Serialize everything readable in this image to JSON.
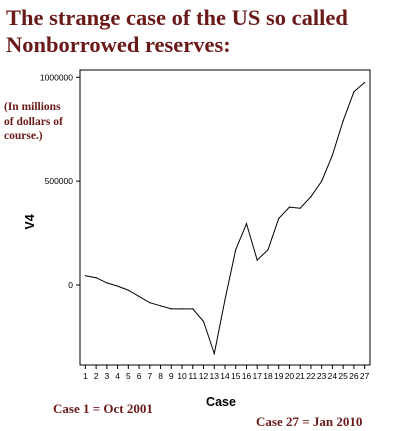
{
  "header": {
    "title_line1": "The strange case of the US so called",
    "title_line2": "Nonborrowed reserves:"
  },
  "units_note": {
    "line1": "(In millions",
    "line2": "of dollars of",
    "line3": "course.)"
  },
  "footnotes": {
    "start": "Case 1 = Oct 2001",
    "end": "Case 27 = Jan 2010"
  },
  "colors": {
    "title": "#6b1a1a",
    "line": "#000000",
    "axis": "#000000"
  },
  "chart_data": {
    "type": "line",
    "title": "",
    "xlabel": "Case",
    "ylabel": "V4",
    "x": [
      1,
      2,
      3,
      4,
      5,
      6,
      7,
      8,
      9,
      10,
      11,
      12,
      13,
      14,
      15,
      16,
      17,
      18,
      19,
      20,
      21,
      22,
      23,
      24,
      25,
      26,
      27
    ],
    "series": [
      {
        "values": [
          45000,
          35000,
          10000,
          -5000,
          -25000,
          -55000,
          -85000,
          -100000,
          -115000,
          -115000,
          -115000,
          -175000,
          -330000,
          -70000,
          170000,
          295000,
          120000,
          170000,
          320000,
          375000,
          370000,
          425000,
          500000,
          625000,
          790000,
          930000,
          975000
        ]
      }
    ],
    "y_ticks": [
      {
        "value": 1000000,
        "label": "1000000"
      },
      {
        "value": 500000,
        "label": "500000"
      },
      {
        "value": 0,
        "label": "0"
      }
    ],
    "ylim": [
      -385000,
      1035000
    ],
    "xlim": [
      0.5,
      27.5
    ],
    "grid": false
  }
}
